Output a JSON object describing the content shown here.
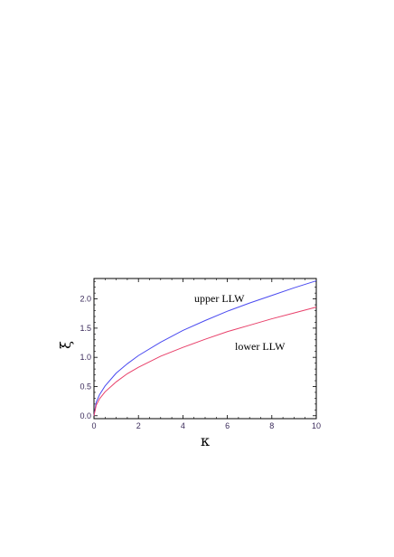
{
  "chart_data": {
    "type": "line",
    "xlabel": "κ",
    "ylabel": "ξ",
    "xlim": [
      0,
      10
    ],
    "ylim": [
      -0.05,
      2.35
    ],
    "xticks": [
      "0",
      "2",
      "4",
      "6",
      "8",
      "10"
    ],
    "yticks": [
      "0.0",
      "0.5",
      "1.0",
      "1.5",
      "2.0"
    ],
    "frame": true,
    "grid": false,
    "series": [
      {
        "name": "upper LLW",
        "color": "#4a4af0",
        "x": [
          0,
          0.1,
          0.25,
          0.5,
          1,
          1.5,
          2,
          3,
          4,
          5,
          6,
          7,
          8,
          9,
          10
        ],
        "y": [
          0,
          0.23,
          0.36,
          0.51,
          0.73,
          0.89,
          1.03,
          1.26,
          1.46,
          1.63,
          1.79,
          1.93,
          2.06,
          2.19,
          2.31
        ]
      },
      {
        "name": "lower LLW",
        "color": "#e8406a",
        "x": [
          0,
          0.1,
          0.25,
          0.5,
          1,
          1.5,
          2,
          3,
          4,
          5,
          6,
          7,
          8,
          9,
          10
        ],
        "y": [
          0,
          0.18,
          0.29,
          0.41,
          0.58,
          0.72,
          0.83,
          1.02,
          1.17,
          1.31,
          1.44,
          1.55,
          1.66,
          1.76,
          1.86
        ]
      }
    ]
  }
}
